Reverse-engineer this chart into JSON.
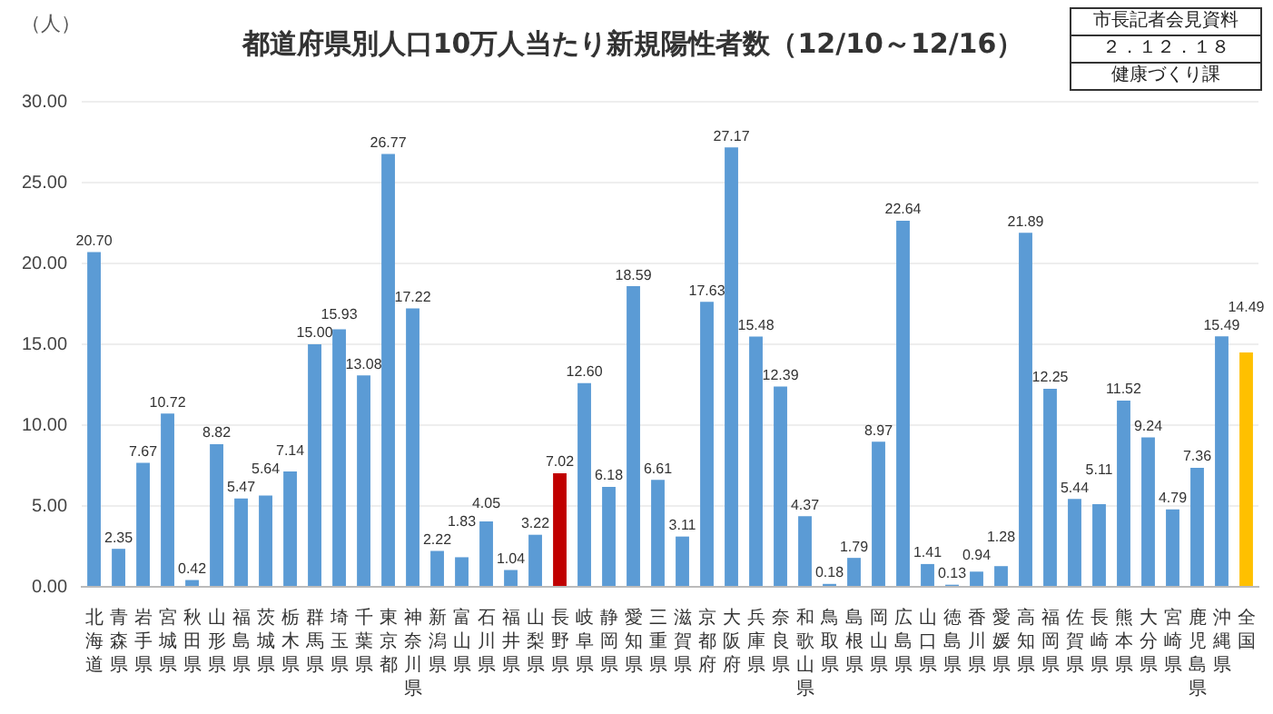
{
  "chart_data": {
    "type": "bar",
    "title": "都道府県別人口10万人当たり新規陽性者数（12/10～12/16）",
    "ylabel": "（人）",
    "annotations": [
      "市長記者会見資料",
      "２．１２．１８",
      "健康づくり課"
    ],
    "categories": [
      "北海道",
      "青森県",
      "岩手県",
      "宮城県",
      "秋田県",
      "山形県",
      "福島県",
      "茨城県",
      "栃木県",
      "群馬県",
      "埼玉県",
      "千葉県",
      "東京都",
      "神奈川県",
      "新潟県",
      "富山県",
      "石川県",
      "福井県",
      "山梨県",
      "長野県",
      "岐阜県",
      "静岡県",
      "愛知県",
      "三重県",
      "滋賀県",
      "京都府",
      "大阪府",
      "兵庫県",
      "奈良県",
      "和歌山県",
      "鳥取県",
      "島根県",
      "岡山県",
      "広島県",
      "山口県",
      "徳島県",
      "香川県",
      "愛媛県",
      "高知県",
      "福岡県",
      "佐賀県",
      "長崎県",
      "熊本県",
      "大分県",
      "宮崎県",
      "鹿児島県",
      "沖縄県",
      "全国"
    ],
    "values": [
      20.7,
      2.35,
      7.67,
      10.72,
      0.42,
      8.82,
      5.47,
      5.64,
      7.14,
      15.0,
      15.93,
      13.08,
      26.77,
      17.22,
      2.22,
      1.83,
      4.05,
      1.04,
      3.22,
      7.02,
      12.6,
      6.18,
      18.59,
      6.61,
      3.11,
      17.63,
      27.17,
      15.48,
      12.39,
      4.37,
      0.18,
      1.79,
      8.97,
      22.64,
      1.41,
      0.13,
      0.94,
      1.28,
      21.89,
      12.25,
      5.44,
      5.11,
      11.52,
      9.24,
      4.79,
      7.36,
      15.49,
      14.49
    ],
    "value_labels": [
      "20.70",
      "2.35",
      "7.67",
      "10.72",
      "0.42",
      "8.82",
      "5.47",
      "5.64",
      "7.14",
      "15.00",
      "15.93",
      "13.08",
      "26.77",
      "17.22",
      "2.22",
      "1.83",
      "4.05",
      "1.04",
      "3.22",
      "7.02",
      "12.60",
      "6.18",
      "18.59",
      "6.61",
      "3.11",
      "17.63",
      "27.17",
      "15.48",
      "12.39",
      "4.37",
      "0.18",
      "1.79",
      "8.97",
      "22.64",
      "1.41",
      "0.13",
      "0.94",
      "1.28",
      "21.89",
      "12.25",
      "5.44",
      "5.11",
      "11.52",
      "9.24",
      "4.79",
      "7.36",
      "15.49",
      "14.49"
    ],
    "colors": [
      "#5b9bd5",
      "#5b9bd5",
      "#5b9bd5",
      "#5b9bd5",
      "#5b9bd5",
      "#5b9bd5",
      "#5b9bd5",
      "#5b9bd5",
      "#5b9bd5",
      "#5b9bd5",
      "#5b9bd5",
      "#5b9bd5",
      "#5b9bd5",
      "#5b9bd5",
      "#5b9bd5",
      "#5b9bd5",
      "#5b9bd5",
      "#5b9bd5",
      "#5b9bd5",
      "#c00000",
      "#5b9bd5",
      "#5b9bd5",
      "#5b9bd5",
      "#5b9bd5",
      "#5b9bd5",
      "#5b9bd5",
      "#5b9bd5",
      "#5b9bd5",
      "#5b9bd5",
      "#5b9bd5",
      "#5b9bd5",
      "#5b9bd5",
      "#5b9bd5",
      "#5b9bd5",
      "#5b9bd5",
      "#5b9bd5",
      "#5b9bd5",
      "#5b9bd5",
      "#5b9bd5",
      "#5b9bd5",
      "#5b9bd5",
      "#5b9bd5",
      "#5b9bd5",
      "#5b9bd5",
      "#5b9bd5",
      "#5b9bd5",
      "#5b9bd5",
      "#ffc000"
    ],
    "ylim": [
      0,
      30
    ],
    "yticks": [
      {
        "value": 0,
        "label": "0.00"
      },
      {
        "value": 5,
        "label": "5.00"
      },
      {
        "value": 10,
        "label": "10.00"
      },
      {
        "value": 15,
        "label": "15.00"
      },
      {
        "value": 20,
        "label": "20.00"
      },
      {
        "value": 25,
        "label": "25.00"
      },
      {
        "value": 30,
        "label": "30.00"
      }
    ],
    "grid": "y",
    "legend": false
  }
}
